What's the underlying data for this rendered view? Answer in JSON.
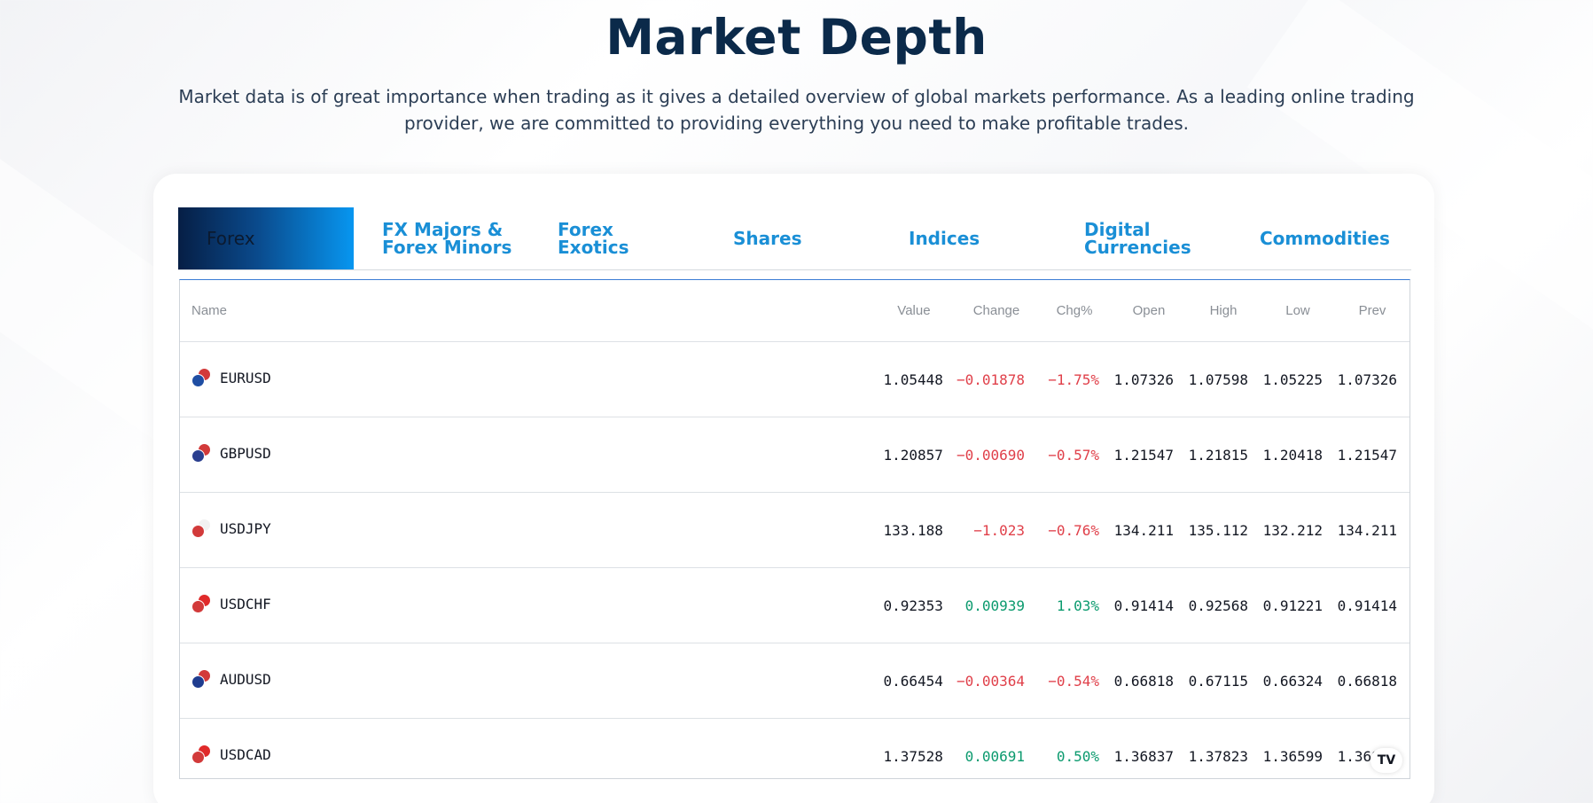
{
  "header": {
    "title": "Market Depth",
    "description": "Market data is of great importance when trading as it gives a detailed overview of global markets performance. As a leading online trading provider, we are committed to providing everything you need to make profitable trades."
  },
  "tabs": [
    {
      "label": "Forex",
      "active": true
    },
    {
      "label": "FX Majors &\nForex Minors",
      "active": false
    },
    {
      "label": "Forex\nExotics",
      "active": false
    },
    {
      "label": "Shares",
      "active": false
    },
    {
      "label": "Indices",
      "active": false
    },
    {
      "label": "Digital\nCurrencies",
      "active": false
    },
    {
      "label": "Commodities",
      "active": false
    }
  ],
  "table": {
    "columns": [
      "Name",
      "Value",
      "Change",
      "Chg%",
      "Open",
      "High",
      "Low",
      "Prev"
    ],
    "rows": [
      {
        "symbol": "EURUSD",
        "value": "1.05448",
        "change": "−0.01878",
        "chg_pct": "−1.75%",
        "open": "1.07326",
        "high": "1.07598",
        "low": "1.05225",
        "prev": "1.07326",
        "direction": "down",
        "flag_colors": [
          "#1f4ea3",
          "#d23a3a"
        ]
      },
      {
        "symbol": "GBPUSD",
        "value": "1.20857",
        "change": "−0.00690",
        "chg_pct": "−0.57%",
        "open": "1.21547",
        "high": "1.21815",
        "low": "1.20418",
        "prev": "1.21547",
        "direction": "down",
        "flag_colors": [
          "#2a3f8f",
          "#d23a3a"
        ]
      },
      {
        "symbol": "USDJPY",
        "value": "133.188",
        "change": "−1.023",
        "chg_pct": "−0.76%",
        "open": "134.211",
        "high": "135.112",
        "low": "132.212",
        "prev": "134.211",
        "direction": "down",
        "flag_colors": [
          "#d23a3a",
          "#f2f2f2"
        ]
      },
      {
        "symbol": "USDCHF",
        "value": "0.92353",
        "change": "0.00939",
        "chg_pct": "1.03%",
        "open": "0.91414",
        "high": "0.92568",
        "low": "0.91221",
        "prev": "0.91414",
        "direction": "up",
        "flag_colors": [
          "#d23a3a",
          "#e02a2a"
        ]
      },
      {
        "symbol": "AUDUSD",
        "value": "0.66454",
        "change": "−0.00364",
        "chg_pct": "−0.54%",
        "open": "0.66818",
        "high": "0.67115",
        "low": "0.66324",
        "prev": "0.66818",
        "direction": "down",
        "flag_colors": [
          "#1f3c8f",
          "#d23a3a"
        ]
      },
      {
        "symbol": "USDCAD",
        "value": "1.37528",
        "change": "0.00691",
        "chg_pct": "0.50%",
        "open": "1.36837",
        "high": "1.37823",
        "low": "1.36599",
        "prev": "1.36837",
        "direction": "up",
        "flag_colors": [
          "#d23a3a",
          "#e02a2a"
        ]
      }
    ]
  },
  "widget_logo": "TV",
  "colors": {
    "title": "#0b2a4a",
    "tab_text": "#1a8fd6",
    "negative": "#e0404a",
    "positive": "#0b9a6e"
  }
}
